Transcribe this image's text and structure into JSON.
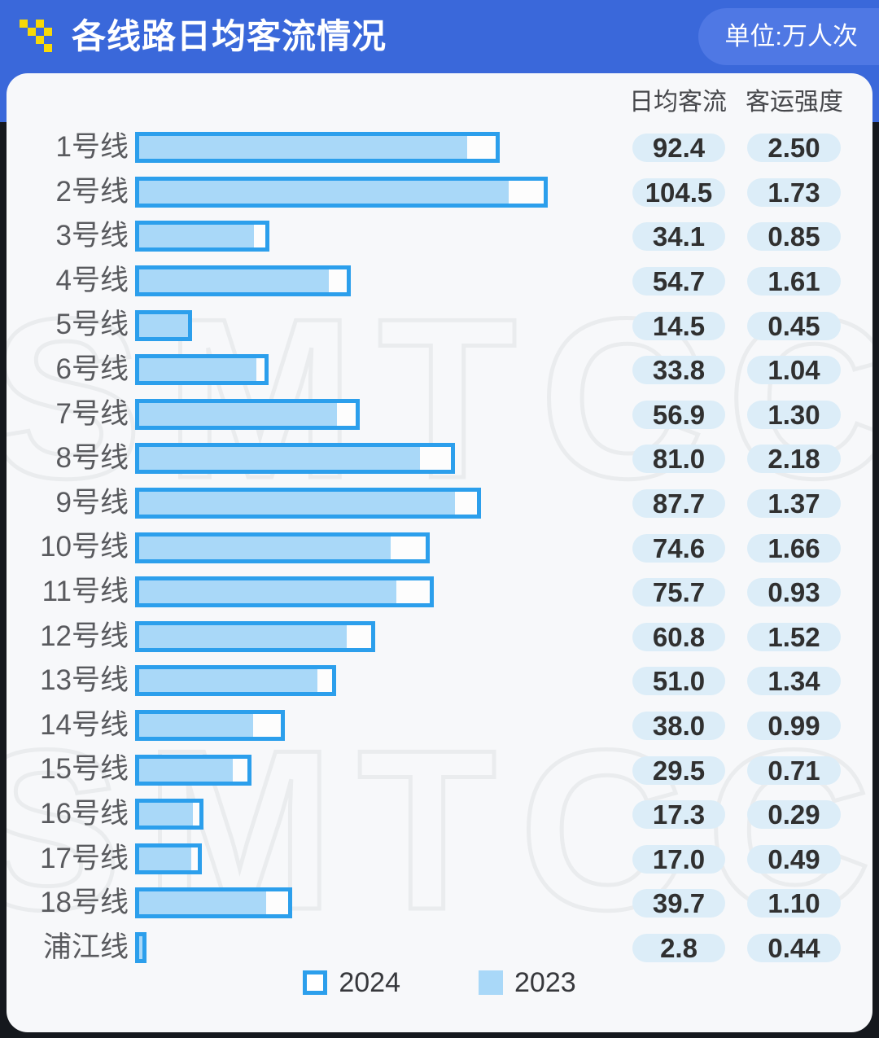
{
  "header": {
    "title": "各线路日均客流情况",
    "unit_label": "单位:万人次",
    "icon": "pixel-squares-logo-icon"
  },
  "watermark": "SMTCC",
  "colors": {
    "header_blue": "#3a68da",
    "badge_blue": "#4f78e4",
    "bar_outline": "#2c9fec",
    "bar_fill": "#a9d8f8",
    "pill_bg": "#dcedf8",
    "icon_yellow": "#f7d908",
    "card_bg": "#f7f8fa"
  },
  "chart_data": {
    "type": "bar",
    "orientation": "horizontal",
    "title": "各线路日均客流情况",
    "unit": "万人次",
    "xmax": 104.5,
    "grid": false,
    "legend_position": "bottom",
    "categories": [
      "1号线",
      "2号线",
      "3号线",
      "4号线",
      "5号线",
      "6号线",
      "7号线",
      "8号线",
      "9号线",
      "10号线",
      "11号线",
      "12号线",
      "13号线",
      "14号线",
      "15号线",
      "16号线",
      "17号线",
      "18号线",
      "浦江线"
    ],
    "series": [
      {
        "name": "2024",
        "style": "outline",
        "values": [
          92.4,
          104.5,
          34.1,
          54.7,
          14.5,
          33.8,
          56.9,
          81.0,
          87.7,
          74.6,
          75.7,
          60.8,
          51.0,
          38.0,
          29.5,
          17.3,
          17.0,
          39.7,
          2.8
        ]
      },
      {
        "name": "2023",
        "style": "filled",
        "values_estimated_from_bar_widths": true,
        "values": [
          85.0,
          95.5,
          31.0,
          50.0,
          14.4,
          31.5,
          52.0,
          73.0,
          82.0,
          65.5,
          67.0,
          54.5,
          47.0,
          30.5,
          25.5,
          15.5,
          15.0,
          34.0,
          2.8
        ]
      }
    ],
    "value_columns": [
      {
        "key": "flow",
        "label": "日均客流",
        "decimals": 1,
        "values": [
          92.4,
          104.5,
          34.1,
          54.7,
          14.5,
          33.8,
          56.9,
          81.0,
          87.7,
          74.6,
          75.7,
          60.8,
          51.0,
          38.0,
          29.5,
          17.3,
          17.0,
          39.7,
          2.8
        ]
      },
      {
        "key": "intensity",
        "label": "客运强度",
        "decimals": 2,
        "values": [
          2.5,
          1.73,
          0.85,
          1.61,
          0.45,
          1.04,
          1.3,
          2.18,
          1.37,
          1.66,
          0.93,
          1.52,
          1.34,
          0.99,
          0.71,
          0.29,
          0.49,
          1.1,
          0.44
        ]
      }
    ]
  }
}
